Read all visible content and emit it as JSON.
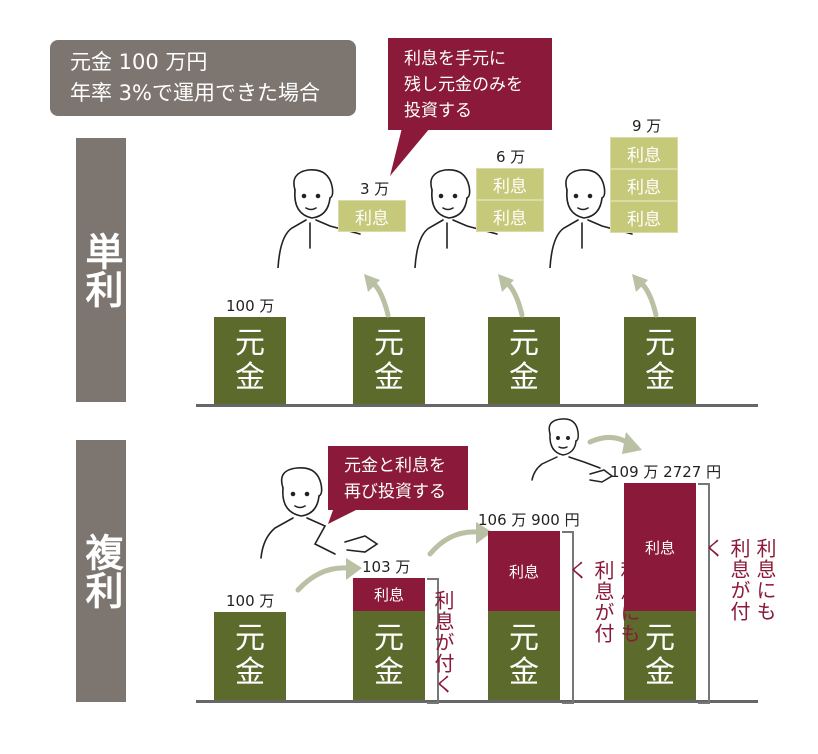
{
  "info": {
    "line1": "元金 100 万円",
    "line2": "年率 3%で運用できた場合"
  },
  "sections": {
    "simple": "単利",
    "compound": "複利"
  },
  "simple": {
    "speech": [
      "利息を手元に",
      "残し元金のみを",
      "投資する"
    ],
    "principal_label": "100 万",
    "interest_labels": [
      "3 万",
      "6 万",
      "9 万"
    ],
    "principal_text": [
      "元",
      "金"
    ],
    "interest_block": "利息"
  },
  "compound": {
    "speech": [
      "元金と利息を",
      "再び投資する"
    ],
    "totals": [
      "100 万",
      "103 万",
      "106 万 900 円",
      "109 万 2727 円"
    ],
    "principal_text": [
      "元",
      "金"
    ],
    "interest_block": "利息",
    "notes": [
      "利息が付く",
      "利息にも利息が付く",
      "利息にも利息が付く"
    ]
  },
  "colors": {
    "principal": "#5c6b2b",
    "interest": "#8b1a3a",
    "block": "#c6c97a",
    "panel": "#7d7570"
  }
}
